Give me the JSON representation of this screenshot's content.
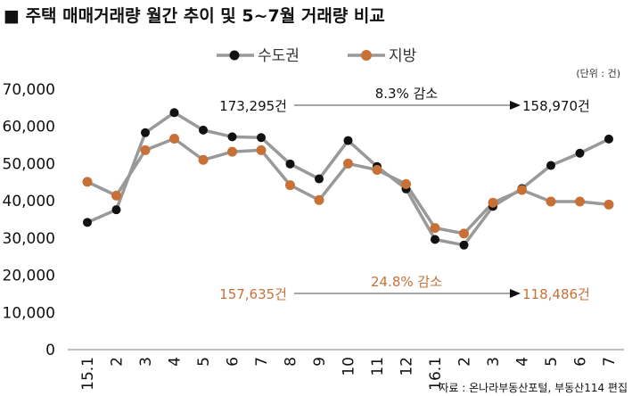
{
  "chart_data": {
    "type": "line",
    "title": "■ 주택 매매거래량 월간 추이 및 5~7월 거래량 비교",
    "unit_note": "(단위 : 건)",
    "source": "자료 : 온나라부동산포털, 부동산114 편집",
    "categories": [
      "15.1",
      "2",
      "3",
      "4",
      "5",
      "6",
      "7",
      "8",
      "9",
      "10",
      "11",
      "12",
      "16.1",
      "2",
      "3",
      "4",
      "5",
      "6",
      "7"
    ],
    "ylim": [
      0,
      70000
    ],
    "yticks": [
      0,
      10000,
      20000,
      30000,
      40000,
      50000,
      60000,
      70000
    ],
    "ytick_labels": [
      "0",
      "10,000",
      "20,000",
      "30,000",
      "40,000",
      "50,000",
      "60,000",
      "70,000"
    ],
    "grid": false,
    "legend_position": "top-center",
    "series": [
      {
        "name": "수도권",
        "marker_color": "#111111",
        "line_color": "#999999",
        "values": [
          34200,
          37600,
          58300,
          63700,
          59000,
          57200,
          57000,
          49900,
          45900,
          56200,
          49200,
          43200,
          29600,
          28100,
          38500,
          43300,
          49500,
          52800,
          56600
        ]
      },
      {
        "name": "지방",
        "marker_color": "#c87137",
        "line_color": "#999999",
        "values": [
          45100,
          41400,
          53600,
          56700,
          51000,
          53200,
          53600,
          44200,
          40200,
          50000,
          48300,
          44500,
          32700,
          31200,
          39500,
          42900,
          39800,
          39800,
          39000
        ]
      }
    ],
    "annotations": [
      {
        "left": "173,295건",
        "middle": "8.3% 감소",
        "right": "158,970건",
        "color": "#111111"
      },
      {
        "left": "157,635건",
        "middle": "24.8% 감소",
        "right": "118,486건",
        "color": "#c87137"
      }
    ]
  }
}
